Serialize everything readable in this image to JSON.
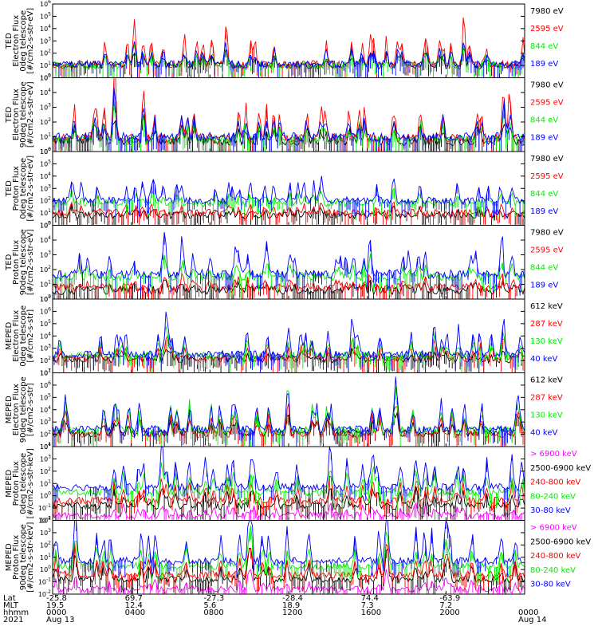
{
  "chart_data": {
    "type": "line",
    "x_ticks": [
      "0000",
      "0400",
      "0800",
      "1200",
      "1600",
      "2000",
      "0000"
    ],
    "x_row_labels": [
      "Lat",
      "MLT",
      "hhmm",
      "2021"
    ],
    "lat_values": [
      "-25.8",
      "69.7",
      "-27.3",
      "-28.4",
      "74.4",
      "-63.9",
      ""
    ],
    "mlt_values": [
      "19.5",
      "12.4",
      "5.6",
      "18.9",
      "7.3",
      "7.2",
      ""
    ],
    "date_labels": [
      "Aug 13",
      "",
      "",
      "",
      "",
      "",
      "Aug 14"
    ],
    "panels": [
      {
        "ylabel": [
          "TED",
          "Electron Flux",
          "0deg telescope",
          "[#/cm2-s-str-eV]"
        ],
        "yticks": [
          "10^0",
          "10^1",
          "10^2",
          "10^3",
          "10^4",
          "10^5",
          "10^6"
        ],
        "ylog": [
          0,
          6
        ],
        "series": [
          {
            "name": "7980 eV",
            "color": "#000000",
            "base": 1.0,
            "amp": 1.2
          },
          {
            "name": "2595 eV",
            "color": "#ff0000",
            "base": 1.1,
            "amp": 2.6
          },
          {
            "name": "844 eV",
            "color": "#00ee00",
            "base": 1.0,
            "amp": 1.2
          },
          {
            "name": "189 eV",
            "color": "#0000ff",
            "base": 1.1,
            "amp": 1.4
          }
        ]
      },
      {
        "ylabel": [
          "TED",
          "Electron Flux",
          "90deg telescope",
          "[#/cm2-s-str-eV]"
        ],
        "yticks": [
          "10^0",
          "10^1",
          "10^2",
          "10^3",
          "10^4",
          "10^5"
        ],
        "ylog": [
          0,
          5
        ],
        "series": [
          {
            "name": "7980 eV",
            "color": "#000000",
            "base": 0.7,
            "amp": 1.2
          },
          {
            "name": "2595 eV",
            "color": "#ff0000",
            "base": 0.9,
            "amp": 2.8
          },
          {
            "name": "844 eV",
            "color": "#00ee00",
            "base": 0.8,
            "amp": 1.4
          },
          {
            "name": "189 eV",
            "color": "#0000ff",
            "base": 1.0,
            "amp": 1.6
          }
        ]
      },
      {
        "ylabel": [
          "TED",
          "Proton Flux",
          "0deg telescope",
          "[#/cm2-s-str-eV]"
        ],
        "yticks": [
          "10^0",
          "10^1",
          "10^2",
          "10^3",
          "10^4",
          "10^5",
          "10^6"
        ],
        "ylog": [
          0,
          6
        ],
        "series": [
          {
            "name": "7980 eV",
            "color": "#000000",
            "base": 0.8,
            "amp": 0.6
          },
          {
            "name": "2595 eV",
            "color": "#ff0000",
            "base": 1.0,
            "amp": 0.6
          },
          {
            "name": "844 eV",
            "color": "#00ee00",
            "base": 1.8,
            "amp": 0.9
          },
          {
            "name": "189 eV",
            "color": "#0000ff",
            "base": 2.0,
            "amp": 1.8
          }
        ]
      },
      {
        "ylabel": [
          "TED",
          "Proton Flux",
          "90deg telescope",
          "[#/cm2-s-str-eV]"
        ],
        "yticks": [
          "10^0",
          "10^1",
          "10^2",
          "10^3",
          "10^4",
          "10^5"
        ],
        "ylog": [
          0,
          5
        ],
        "series": [
          {
            "name": "7980 eV",
            "color": "#000000",
            "base": 0.6,
            "amp": 0.5
          },
          {
            "name": "2595 eV",
            "color": "#ff0000",
            "base": 0.8,
            "amp": 0.6
          },
          {
            "name": "844 eV",
            "color": "#00ee00",
            "base": 1.5,
            "amp": 0.9
          },
          {
            "name": "189 eV",
            "color": "#0000ff",
            "base": 1.7,
            "amp": 1.8
          }
        ]
      },
      {
        "ylabel": [
          "MEPED",
          "Electron Flux",
          "0deg telescope",
          "[#/cm2-s-str]"
        ],
        "yticks": [
          "10^1",
          "10^2",
          "10^3",
          "10^4",
          "10^5",
          "10^6",
          "10^7"
        ],
        "ylog": [
          1,
          7
        ],
        "series": [
          {
            "name": "612 keV",
            "color": "#000000",
            "base": 2.1,
            "amp": 0.6
          },
          {
            "name": "287 keV",
            "color": "#ff0000",
            "base": 2.2,
            "amp": 1.2
          },
          {
            "name": "130 keV",
            "color": "#00ee00",
            "base": 2.4,
            "amp": 1.5
          },
          {
            "name": "40 keV",
            "color": "#0000ff",
            "base": 2.5,
            "amp": 2.5
          }
        ]
      },
      {
        "ylabel": [
          "MEPED",
          "Electron Flux",
          "90deg telescope",
          "[#/cm2-s-str]"
        ],
        "yticks": [
          "10^1",
          "10^2",
          "10^3",
          "10^4",
          "10^5",
          "10^6",
          "10^7"
        ],
        "ylog": [
          1,
          7
        ],
        "series": [
          {
            "name": "612 keV",
            "color": "#000000",
            "base": 2.1,
            "amp": 1.4
          },
          {
            "name": "287 keV",
            "color": "#ff0000",
            "base": 2.0,
            "amp": 2.0
          },
          {
            "name": "130 keV",
            "color": "#00ee00",
            "base": 2.3,
            "amp": 2.4
          },
          {
            "name": "40 keV",
            "color": "#0000ff",
            "base": 2.4,
            "amp": 2.8
          }
        ]
      },
      {
        "ylabel": [
          "MEPED",
          "Proton Flux",
          "0deg telescope",
          "[#/cm2-s-str-keV]"
        ],
        "yticks": [
          "10^-2",
          "10^-1",
          "10^0",
          "10^1",
          "10^2",
          "10^3",
          "10^4"
        ],
        "ylog": [
          -2,
          4
        ],
        "series": [
          {
            "name": "> 6900 keV",
            "color": "#ff00ff",
            "base": -1.6,
            "amp": 0.8
          },
          {
            "name": "2500-6900 keV",
            "color": "#000000",
            "base": -0.8,
            "amp": 1.4
          },
          {
            "name": "240-800 keV",
            "color": "#ff0000",
            "base": -0.4,
            "amp": 1.6
          },
          {
            "name": "80-240 keV",
            "color": "#00ee00",
            "base": 0.3,
            "amp": 1.8
          },
          {
            "name": "30-80 keV",
            "color": "#0000ff",
            "base": 0.7,
            "amp": 2.8
          }
        ]
      },
      {
        "ylabel": [
          "MEPED",
          "Proton Flux",
          "90deg telescope",
          "[#/cm2-s-str-keV]"
        ],
        "yticks": [
          "10^-2",
          "10^-1",
          "10^0",
          "10^1",
          "10^2",
          "10^3",
          "10^4"
        ],
        "ylog": [
          -2,
          4
        ],
        "series": [
          {
            "name": "> 6900 keV",
            "color": "#ff00ff",
            "base": -1.6,
            "amp": 0.8
          },
          {
            "name": "2500-6900 keV",
            "color": "#000000",
            "base": -0.8,
            "amp": 1.4
          },
          {
            "name": "240-800 keV",
            "color": "#ff0000",
            "base": -0.4,
            "amp": 1.6
          },
          {
            "name": "80-240 keV",
            "color": "#00ee00",
            "base": 0.3,
            "amp": 1.8
          },
          {
            "name": "30-80 keV",
            "color": "#0000ff",
            "base": 0.7,
            "amp": 3.0
          }
        ]
      }
    ]
  }
}
